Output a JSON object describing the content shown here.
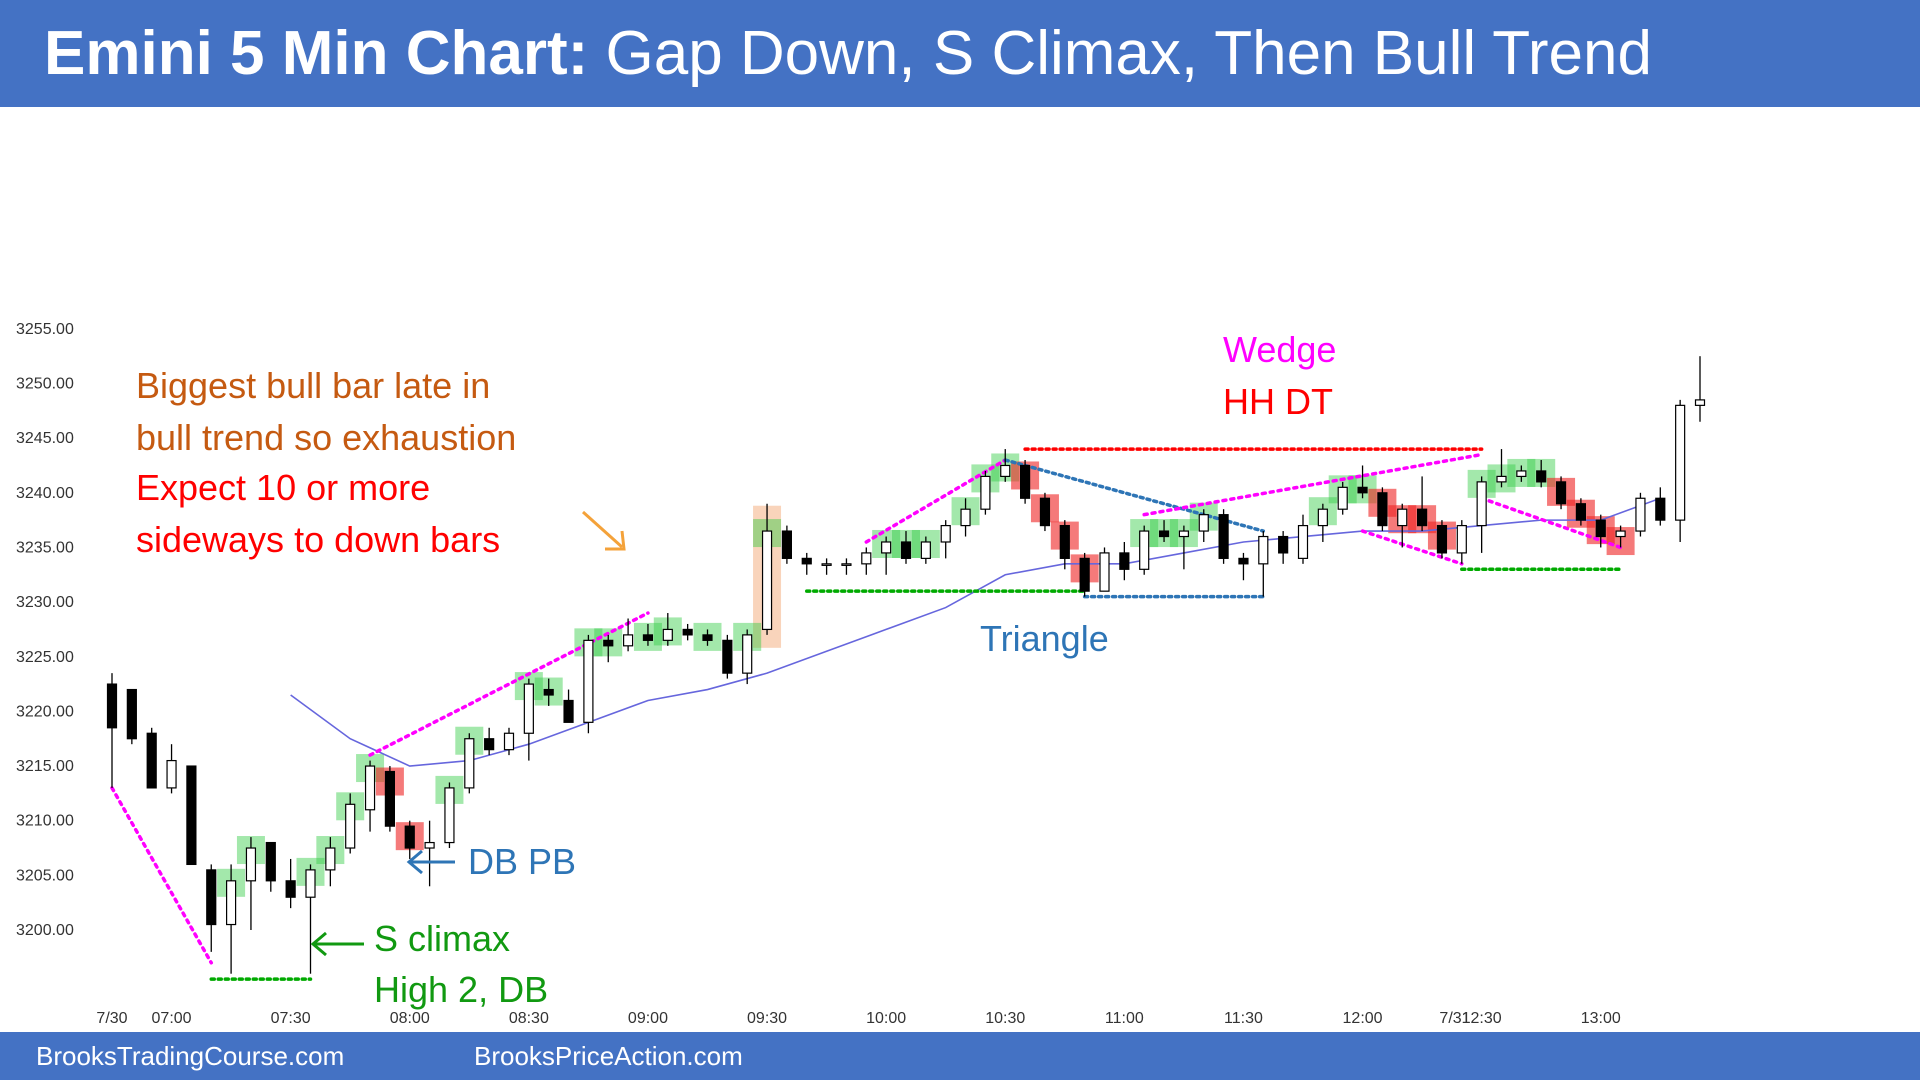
{
  "header": {
    "title_bold": "Emini 5 Min Chart:",
    "title_rest": " Gap Down, S Climax, Then Bull Trend",
    "bg_color": "#4472c4"
  },
  "footer": {
    "left_text": "BrooksTradingCourse.com",
    "right_text": "BrooksPriceAction.com"
  },
  "chart_data": {
    "type": "candlestick",
    "title": "",
    "xlabel": "",
    "ylabel": "",
    "ylim": [
      3195,
      3256
    ],
    "grid": false,
    "y_ticks": [
      "3255.00",
      "3250.00",
      "3245.00",
      "3240.00",
      "3235.00",
      "3230.00",
      "3225.00",
      "3220.00",
      "3215.00",
      "3210.00",
      "3205.00",
      "3200.00"
    ],
    "x_ticks": [
      "7/30",
      "07:00",
      "07:30",
      "08:00",
      "08:30",
      "09:00",
      "09:30",
      "10:00",
      "10:30",
      "11:00",
      "11:30",
      "12:00",
      "12:30",
      "13:00",
      "7/31"
    ],
    "x_tick_bars": [
      0,
      3,
      9,
      15,
      21,
      27,
      33,
      39,
      45,
      51,
      57,
      63,
      69,
      75,
      77
    ],
    "candles": [
      {
        "o": 3222.5,
        "h": 3223.5,
        "l": 3213.0,
        "c": 3218.5
      },
      {
        "o": 3222.0,
        "h": 3222.0,
        "l": 3217.0,
        "c": 3217.5
      },
      {
        "o": 3218.0,
        "h": 3218.5,
        "l": 3213.0,
        "c": 3213.0
      },
      {
        "o": 3213.0,
        "h": 3217.0,
        "l": 3212.5,
        "c": 3215.5
      },
      {
        "o": 3215.0,
        "h": 3215.0,
        "l": 3206.0,
        "c": 3206.0
      },
      {
        "o": 3205.5,
        "h": 3206.0,
        "l": 3198.0,
        "c": 3200.5
      },
      {
        "o": 3200.5,
        "h": 3206.0,
        "l": 3196.0,
        "c": 3204.5
      },
      {
        "o": 3204.5,
        "h": 3208.5,
        "l": 3200.0,
        "c": 3207.5
      },
      {
        "o": 3208.0,
        "h": 3208.0,
        "l": 3203.5,
        "c": 3204.5
      },
      {
        "o": 3204.5,
        "h": 3206.5,
        "l": 3202.0,
        "c": 3203.0
      },
      {
        "o": 3203.0,
        "h": 3206.0,
        "l": 3196.0,
        "c": 3205.5
      },
      {
        "o": 3205.5,
        "h": 3208.5,
        "l": 3204.0,
        "c": 3207.5
      },
      {
        "o": 3207.5,
        "h": 3212.5,
        "l": 3207.0,
        "c": 3211.5
      },
      {
        "o": 3211.0,
        "h": 3215.5,
        "l": 3209.0,
        "c": 3215.0
      },
      {
        "o": 3214.5,
        "h": 3215.0,
        "l": 3209.0,
        "c": 3209.5
      },
      {
        "o": 3209.5,
        "h": 3210.0,
        "l": 3206.5,
        "c": 3207.5
      },
      {
        "o": 3207.5,
        "h": 3210.0,
        "l": 3204.0,
        "c": 3208.0
      },
      {
        "o": 3208.0,
        "h": 3213.5,
        "l": 3207.5,
        "c": 3213.0
      },
      {
        "o": 3213.0,
        "h": 3218.0,
        "l": 3212.5,
        "c": 3217.5
      },
      {
        "o": 3217.5,
        "h": 3218.5,
        "l": 3216.0,
        "c": 3216.5
      },
      {
        "o": 3216.5,
        "h": 3218.5,
        "l": 3216.0,
        "c": 3218.0
      },
      {
        "o": 3218.0,
        "h": 3223.0,
        "l": 3215.5,
        "c": 3222.5
      },
      {
        "o": 3222.0,
        "h": 3223.0,
        "l": 3220.5,
        "c": 3221.5
      },
      {
        "o": 3221.0,
        "h": 3222.0,
        "l": 3219.0,
        "c": 3219.0
      },
      {
        "o": 3219.0,
        "h": 3227.0,
        "l": 3218.0,
        "c": 3226.5
      },
      {
        "o": 3226.5,
        "h": 3227.0,
        "l": 3224.5,
        "c": 3226.0
      },
      {
        "o": 3226.0,
        "h": 3228.5,
        "l": 3225.5,
        "c": 3227.0
      },
      {
        "o": 3227.0,
        "h": 3228.0,
        "l": 3226.0,
        "c": 3226.5
      },
      {
        "o": 3226.5,
        "h": 3229.0,
        "l": 3226.0,
        "c": 3227.5
      },
      {
        "o": 3227.5,
        "h": 3228.0,
        "l": 3226.5,
        "c": 3227.0
      },
      {
        "o": 3227.0,
        "h": 3227.5,
        "l": 3226.0,
        "c": 3226.5
      },
      {
        "o": 3226.5,
        "h": 3227.0,
        "l": 3223.0,
        "c": 3223.5
      },
      {
        "o": 3223.5,
        "h": 3227.5,
        "l": 3222.5,
        "c": 3227.0
      },
      {
        "o": 3227.5,
        "h": 3239.0,
        "l": 3227.0,
        "c": 3236.5
      },
      {
        "o": 3236.5,
        "h": 3237.0,
        "l": 3233.5,
        "c": 3234.0
      },
      {
        "o": 3234.0,
        "h": 3234.5,
        "l": 3232.5,
        "c": 3233.5
      },
      {
        "o": 3233.5,
        "h": 3234.0,
        "l": 3232.5,
        "c": 3233.5
      },
      {
        "o": 3233.5,
        "h": 3234.0,
        "l": 3232.5,
        "c": 3233.5
      },
      {
        "o": 3233.5,
        "h": 3235.0,
        "l": 3232.5,
        "c": 3234.5
      },
      {
        "o": 3234.5,
        "h": 3236.0,
        "l": 3232.5,
        "c": 3235.5
      },
      {
        "o": 3235.5,
        "h": 3236.5,
        "l": 3233.5,
        "c": 3234.0
      },
      {
        "o": 3234.0,
        "h": 3236.0,
        "l": 3233.5,
        "c": 3235.5
      },
      {
        "o": 3235.5,
        "h": 3237.5,
        "l": 3234.0,
        "c": 3237.0
      },
      {
        "o": 3237.0,
        "h": 3239.5,
        "l": 3236.0,
        "c": 3238.5
      },
      {
        "o": 3238.5,
        "h": 3242.0,
        "l": 3238.0,
        "c": 3241.5
      },
      {
        "o": 3241.5,
        "h": 3244.0,
        "l": 3241.0,
        "c": 3242.5
      },
      {
        "o": 3242.5,
        "h": 3243.0,
        "l": 3239.0,
        "c": 3239.5
      },
      {
        "o": 3239.5,
        "h": 3240.0,
        "l": 3236.5,
        "c": 3237.0
      },
      {
        "o": 3237.0,
        "h": 3237.5,
        "l": 3233.0,
        "c": 3234.0
      },
      {
        "o": 3234.0,
        "h": 3234.5,
        "l": 3230.5,
        "c": 3231.0
      },
      {
        "o": 3231.0,
        "h": 3235.0,
        "l": 3231.0,
        "c": 3234.5
      },
      {
        "o": 3234.5,
        "h": 3235.5,
        "l": 3232.0,
        "c": 3233.0
      },
      {
        "o": 3233.0,
        "h": 3237.0,
        "l": 3232.5,
        "c": 3236.5
      },
      {
        "o": 3236.5,
        "h": 3237.5,
        "l": 3235.5,
        "c": 3236.0
      },
      {
        "o": 3236.0,
        "h": 3237.0,
        "l": 3233.0,
        "c": 3236.5
      },
      {
        "o": 3236.5,
        "h": 3238.5,
        "l": 3235.5,
        "c": 3238.0
      },
      {
        "o": 3238.0,
        "h": 3238.5,
        "l": 3233.5,
        "c": 3234.0
      },
      {
        "o": 3234.0,
        "h": 3234.5,
        "l": 3232.0,
        "c": 3233.5
      },
      {
        "o": 3233.5,
        "h": 3236.5,
        "l": 3230.5,
        "c": 3236.0
      },
      {
        "o": 3236.0,
        "h": 3236.5,
        "l": 3233.5,
        "c": 3234.5
      },
      {
        "o": 3234.0,
        "h": 3238.0,
        "l": 3233.5,
        "c": 3237.0
      },
      {
        "o": 3237.0,
        "h": 3239.0,
        "l": 3235.5,
        "c": 3238.5
      },
      {
        "o": 3238.5,
        "h": 3241.0,
        "l": 3238.0,
        "c": 3240.5
      },
      {
        "o": 3240.5,
        "h": 3242.5,
        "l": 3239.5,
        "c": 3240.0
      },
      {
        "o": 3240.0,
        "h": 3240.5,
        "l": 3236.5,
        "c": 3237.0
      },
      {
        "o": 3237.0,
        "h": 3239.0,
        "l": 3235.0,
        "c": 3238.5
      },
      {
        "o": 3238.5,
        "h": 3241.5,
        "l": 3236.5,
        "c": 3237.0
      },
      {
        "o": 3237.0,
        "h": 3237.5,
        "l": 3234.0,
        "c": 3234.5
      },
      {
        "o": 3234.5,
        "h": 3237.5,
        "l": 3233.5,
        "c": 3237.0
      },
      {
        "o": 3237.0,
        "h": 3241.5,
        "l": 3234.5,
        "c": 3241.0
      },
      {
        "o": 3241.0,
        "h": 3244.0,
        "l": 3240.5,
        "c": 3241.5
      },
      {
        "o": 3241.5,
        "h": 3242.5,
        "l": 3241.0,
        "c": 3242.0
      },
      {
        "o": 3242.0,
        "h": 3243.0,
        "l": 3240.5,
        "c": 3241.0
      },
      {
        "o": 3241.0,
        "h": 3241.5,
        "l": 3238.5,
        "c": 3239.0
      },
      {
        "o": 3239.0,
        "h": 3239.5,
        "l": 3237.0,
        "c": 3237.5
      },
      {
        "o": 3237.5,
        "h": 3238.0,
        "l": 3235.0,
        "c": 3236.0
      },
      {
        "o": 3236.0,
        "h": 3237.0,
        "l": 3235.0,
        "c": 3236.5
      },
      {
        "o": 3236.5,
        "h": 3240.0,
        "l": 3236.0,
        "c": 3239.5
      },
      {
        "o": 3239.5,
        "h": 3240.5,
        "l": 3237.0,
        "c": 3237.5
      },
      {
        "o": 3237.5,
        "h": 3248.5,
        "l": 3235.5,
        "c": 3248.0
      },
      {
        "o": 3248.0,
        "h": 3252.5,
        "l": 3246.5,
        "c": 3248.5
      }
    ],
    "ema": [
      {
        "bar": 9,
        "v": 3221.5
      },
      {
        "bar": 12,
        "v": 3217.5
      },
      {
        "bar": 15,
        "v": 3215.0
      },
      {
        "bar": 18,
        "v": 3215.5
      },
      {
        "bar": 21,
        "v": 3217.0
      },
      {
        "bar": 24,
        "v": 3219.0
      },
      {
        "bar": 27,
        "v": 3221.0
      },
      {
        "bar": 30,
        "v": 3222.0
      },
      {
        "bar": 33,
        "v": 3223.5
      },
      {
        "bar": 36,
        "v": 3225.5
      },
      {
        "bar": 39,
        "v": 3227.5
      },
      {
        "bar": 42,
        "v": 3229.5
      },
      {
        "bar": 45,
        "v": 3232.5
      },
      {
        "bar": 48,
        "v": 3233.5
      },
      {
        "bar": 51,
        "v": 3233.5
      },
      {
        "bar": 54,
        "v": 3234.5
      },
      {
        "bar": 57,
        "v": 3235.5
      },
      {
        "bar": 60,
        "v": 3236.0
      },
      {
        "bar": 63,
        "v": 3236.5
      },
      {
        "bar": 66,
        "v": 3236.5
      },
      {
        "bar": 69,
        "v": 3237.0
      },
      {
        "bar": 72,
        "v": 3237.5
      },
      {
        "bar": 75,
        "v": 3237.5
      },
      {
        "bar": 78,
        "v": 3239.5
      }
    ],
    "colors": {
      "bull_fill": "#ffffff",
      "bear_fill": "#000000",
      "candle_stroke": "#000000",
      "ema": "#6666dd",
      "green_highlight": "#33cc44",
      "red_highlight": "#ee2222",
      "orange_highlight": "#f4b183",
      "magenta": "#ff00ff",
      "blue_dots": "#2e75b6",
      "red_dots": "#ff0000",
      "green_dots": "#00aa00",
      "arrow_orange": "#f4a23a"
    },
    "highlights": {
      "green": [
        6,
        7,
        10,
        11,
        12,
        13,
        17,
        18,
        21,
        22,
        24,
        25,
        27,
        28,
        30,
        32,
        33,
        39,
        40,
        41,
        43,
        44,
        45,
        52,
        53,
        54,
        55,
        61,
        62,
        63,
        69,
        70,
        71,
        72
      ],
      "red": [
        14,
        15,
        46,
        47,
        48,
        49,
        64,
        65,
        66,
        67,
        73,
        74,
        75,
        76
      ],
      "orange": [
        33
      ]
    },
    "lines": [
      {
        "name": "wedge-start-line",
        "style": "magenta",
        "points": [
          [
            0,
            3213.0
          ],
          [
            5,
            3197.0
          ]
        ]
      },
      {
        "name": "low-double-bottom-line",
        "style": "green",
        "points": [
          [
            5,
            3195.5
          ],
          [
            10,
            3195.5
          ]
        ]
      },
      {
        "name": "bull-channel-line",
        "style": "magenta",
        "points": [
          [
            13,
            3216.0
          ],
          [
            27,
            3229.0
          ]
        ]
      },
      {
        "name": "upper-bull-line",
        "style": "magenta",
        "points": [
          [
            38,
            3235.5
          ],
          [
            45,
            3243.0
          ]
        ]
      },
      {
        "name": "triangle-top-line",
        "style": "blue",
        "points": [
          [
            45,
            3243.0
          ],
          [
            58,
            3236.5
          ]
        ]
      },
      {
        "name": "triangle-bottom-line",
        "style": "blue",
        "points": [
          [
            49,
            3230.5
          ],
          [
            58,
            3230.5
          ]
        ]
      },
      {
        "name": "range-bottom-line",
        "style": "green",
        "points": [
          [
            35,
            3231.0
          ],
          [
            49,
            3231.0
          ]
        ]
      },
      {
        "name": "top-red-line",
        "style": "red",
        "points": [
          [
            46,
            3244.0
          ],
          [
            69,
            3244.0
          ]
        ]
      },
      {
        "name": "wedge-line",
        "style": "magenta",
        "points": [
          [
            52,
            3238.0
          ],
          [
            69,
            3243.5
          ]
        ]
      },
      {
        "name": "wedge-low-line",
        "style": "magenta",
        "points": [
          [
            63,
            3236.5
          ],
          [
            68,
            3233.5
          ]
        ]
      },
      {
        "name": "late-green-line",
        "style": "green",
        "points": [
          [
            68,
            3233.0
          ],
          [
            76,
            3233.0
          ]
        ]
      },
      {
        "name": "late-magenta-line",
        "style": "magenta",
        "points": [
          [
            69,
            3239.5
          ],
          [
            76,
            3235.0
          ]
        ]
      }
    ],
    "annotations": {
      "exhaustion_1": "Biggest bull bar late in",
      "exhaustion_2": "bull trend so exhaustion",
      "expect_1": "Expect 10 or more",
      "expect_2": "sideways to down bars",
      "wedge": "Wedge",
      "hh_dt": "HH DT",
      "triangle": "Triangle",
      "db_pb": "DB PB",
      "s_climax": "S climax",
      "high_2_db": "High 2, DB"
    }
  }
}
